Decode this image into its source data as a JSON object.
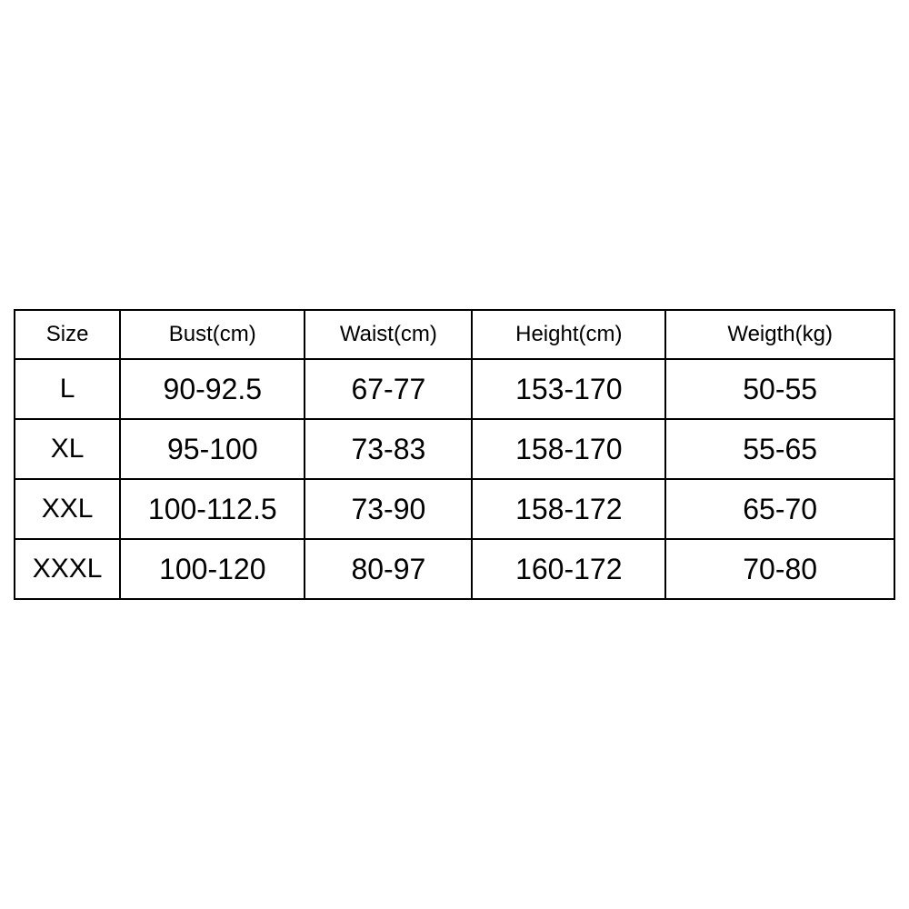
{
  "table": {
    "type": "table",
    "border_color": "#000000",
    "border_width": 2,
    "background_color": "#ffffff",
    "text_color": "#000000",
    "header_fontsize": 24,
    "body_fontsize": 32,
    "size_col_fontsize": 30,
    "row_height_header": 54,
    "row_height_body": 66,
    "column_widths_pct": [
      12,
      21,
      19,
      22,
      26
    ],
    "columns": [
      "Size",
      "Bust(cm)",
      "Waist(cm)",
      "Height(cm)",
      "Weigth(kg)"
    ],
    "rows": [
      [
        "L",
        "90-92.5",
        "67-77",
        "153-170",
        "50-55"
      ],
      [
        "XL",
        "95-100",
        "73-83",
        "158-170",
        "55-65"
      ],
      [
        "XXL",
        "100-112.5",
        "73-90",
        "158-172",
        "65-70"
      ],
      [
        "XXXL",
        "100-120",
        "80-97",
        "160-172",
        "70-80"
      ]
    ]
  }
}
